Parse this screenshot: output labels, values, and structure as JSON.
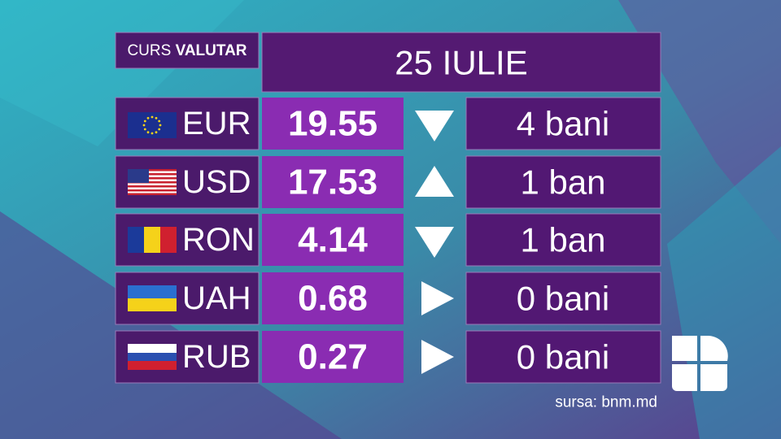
{
  "header": {
    "label_light": "CURS",
    "label_bold": "VALUTAR",
    "date": "25 IULIE"
  },
  "table": {
    "rows": [
      {
        "currency": "EUR",
        "rate": "19.55",
        "trend": "down",
        "change": "4 bani"
      },
      {
        "currency": "USD",
        "rate": "17.53",
        "trend": "up",
        "change": "1 ban"
      },
      {
        "currency": "RON",
        "rate": "4.14",
        "trend": "down",
        "change": "1 ban"
      },
      {
        "currency": "UAH",
        "rate": "0.68",
        "trend": "flat",
        "change": "0 bani"
      },
      {
        "currency": "RUB",
        "rate": "0.27",
        "trend": "flat",
        "change": "0 bani"
      }
    ]
  },
  "footer": {
    "source": "sursa: bnm.md"
  }
}
